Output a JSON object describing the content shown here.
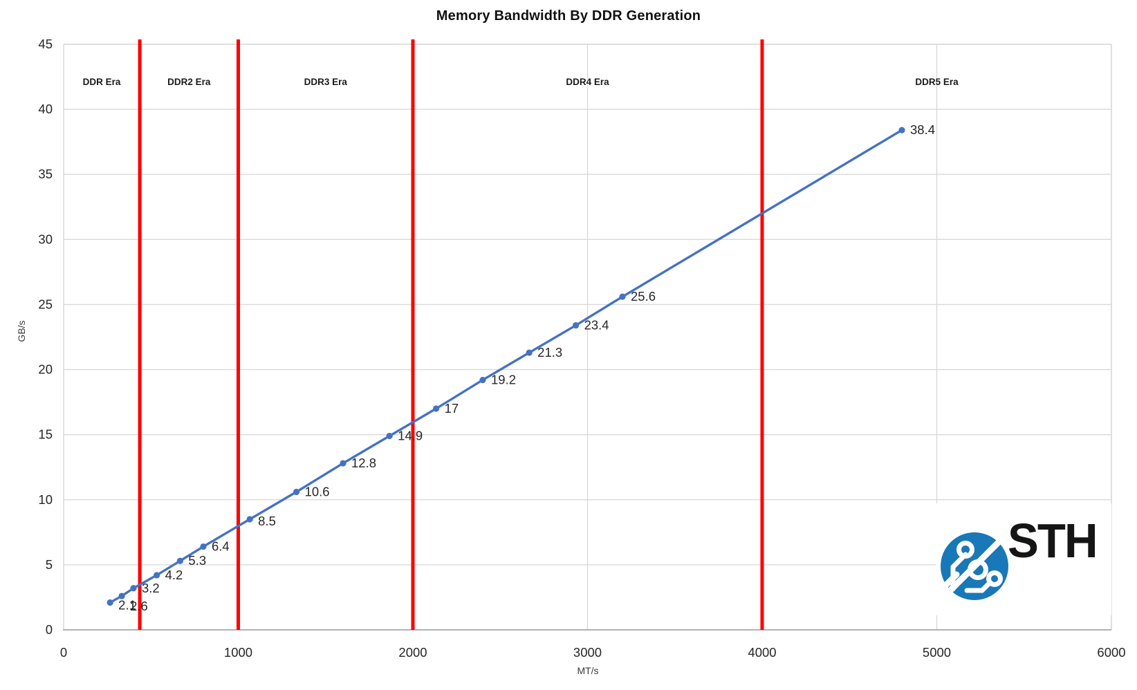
{
  "chart_data": {
    "type": "line",
    "title": "Memory Bandwidth By DDR Generation",
    "xlabel": "MT/s",
    "ylabel": "GB/s",
    "xlim": [
      0,
      6000
    ],
    "ylim": [
      0,
      45
    ],
    "x_ticks": [
      0,
      1000,
      2000,
      3000,
      4000,
      5000,
      6000
    ],
    "y_ticks": [
      0,
      5,
      10,
      15,
      20,
      25,
      30,
      35,
      40,
      45
    ],
    "grid": true,
    "legend": "none",
    "line_color": "#4472C4",
    "series": [
      {
        "name": "Memory Bandwidth",
        "x": [
          266,
          333,
          400,
          533,
          667,
          800,
          1066,
          1333,
          1600,
          1866,
          2133,
          2400,
          2666,
          2933,
          3200,
          4800
        ],
        "y": [
          2.1,
          2.6,
          3.2,
          4.2,
          5.3,
          6.4,
          8.5,
          10.6,
          12.8,
          14.9,
          17,
          19.2,
          21.3,
          23.4,
          25.6,
          38.4
        ],
        "labels": [
          "2.1",
          "2.6",
          "3.2",
          "4.2",
          "5.3",
          "6.4",
          "8.5",
          "10.6",
          "12.8",
          "14.9",
          "17",
          "19.2",
          "21.3",
          "23.4",
          "25.6",
          "38.4"
        ],
        "label_dy": [
          4,
          15,
          0,
          0,
          0,
          0,
          3,
          0,
          0,
          0,
          0,
          0,
          0,
          0,
          0,
          0
        ]
      }
    ],
    "era_dividers": {
      "color": "#FE0000",
      "x_values": [
        436,
        1000,
        2000,
        4000
      ]
    },
    "era_labels": [
      "DDR Era",
      "DDR2 Era",
      "DDR3 Era",
      "DDR4 Era",
      "DDR5 Era"
    ]
  },
  "logo": {
    "text": "STH",
    "blue": "#1878B8"
  }
}
